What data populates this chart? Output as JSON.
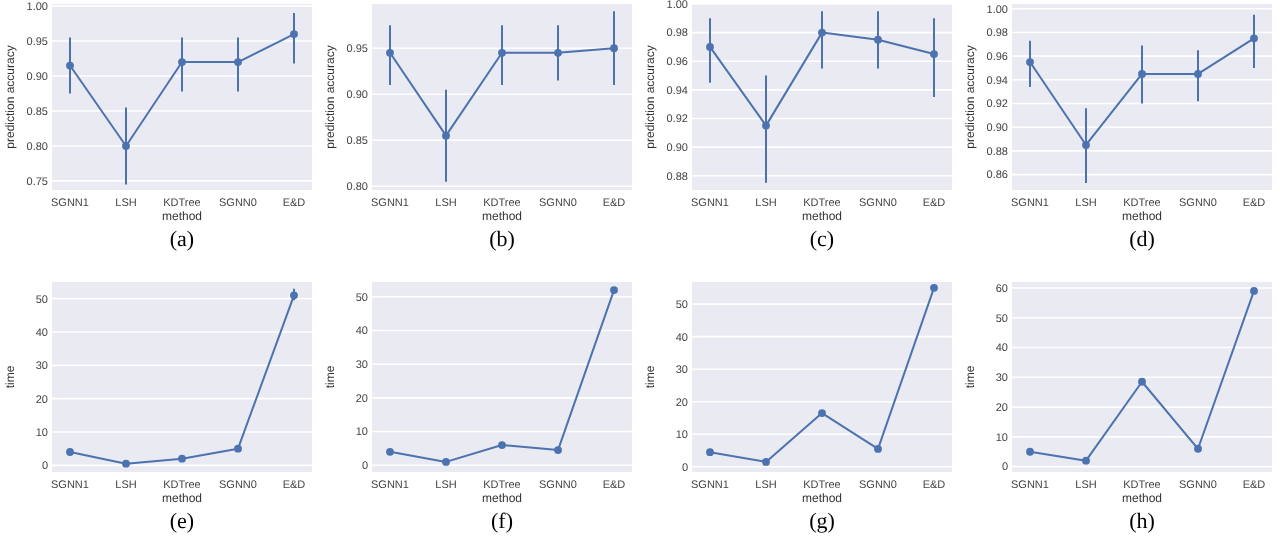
{
  "chart_data": [
    {
      "type": "line",
      "xlabel": "method",
      "ylabel": "prediction accuracy",
      "annotations": [
        "(a)"
      ],
      "categories": [
        "SGNN1",
        "LSH",
        "KDTree",
        "SGNN0",
        "E&D"
      ],
      "series": [
        {
          "color": "#4c72b0",
          "values": [
            0.915,
            0.8,
            0.92,
            0.92,
            0.96
          ],
          "errors": [
            [
              0.875,
              0.955
            ],
            [
              0.745,
              0.855
            ],
            [
              0.878,
              0.955
            ],
            [
              0.878,
              0.955
            ],
            [
              0.918,
              0.99
            ]
          ]
        }
      ],
      "ylim": [
        0.737,
        1.003
      ],
      "yticks": [
        {
          "value": 0.75,
          "label": "0.75"
        },
        {
          "value": 0.8,
          "label": "0.80"
        },
        {
          "value": 0.85,
          "label": "0.85"
        },
        {
          "value": 0.9,
          "label": "0.90"
        },
        {
          "value": 0.95,
          "label": "0.95"
        },
        {
          "value": 1,
          "label": "1.00"
        }
      ],
      "grid": "y",
      "marker": "circle"
    },
    {
      "type": "line",
      "xlabel": "method",
      "ylabel": "prediction accuracy",
      "annotations": [
        "(b)"
      ],
      "categories": [
        "SGNN1",
        "LSH",
        "KDTree",
        "SGNN0",
        "E&D"
      ],
      "series": [
        {
          "color": "#4c72b0",
          "values": [
            0.945,
            0.855,
            0.945,
            0.945,
            0.95
          ],
          "errors": [
            [
              0.91,
              0.975
            ],
            [
              0.805,
              0.905
            ],
            [
              0.91,
              0.975
            ],
            [
              0.915,
              0.975
            ],
            [
              0.91,
              0.99
            ]
          ]
        }
      ],
      "ylim": [
        0.796,
        0.998
      ],
      "yticks": [
        {
          "value": 0.8,
          "label": "0.80"
        },
        {
          "value": 0.85,
          "label": "0.85"
        },
        {
          "value": 0.9,
          "label": "0.90"
        },
        {
          "value": 0.95,
          "label": "0.95"
        }
      ],
      "grid": "y",
      "marker": "circle"
    },
    {
      "type": "line",
      "xlabel": "method",
      "ylabel": "prediction accuracy",
      "annotations": [
        "(c)"
      ],
      "categories": [
        "SGNN1",
        "LSH",
        "KDTree",
        "SGNN0",
        "E&D"
      ],
      "series": [
        {
          "color": "#4c72b0",
          "values": [
            0.97,
            0.915,
            0.98,
            0.975,
            0.965
          ],
          "errors": [
            [
              0.945,
              0.99
            ],
            [
              0.875,
              0.95
            ],
            [
              0.955,
              0.995
            ],
            [
              0.955,
              0.995
            ],
            [
              0.935,
              0.99
            ]
          ]
        }
      ],
      "ylim": [
        0.87,
        1.0
      ],
      "yticks": [
        {
          "value": 0.88,
          "label": "0.88"
        },
        {
          "value": 0.9,
          "label": "0.90"
        },
        {
          "value": 0.92,
          "label": "0.92"
        },
        {
          "value": 0.94,
          "label": "0.94"
        },
        {
          "value": 0.96,
          "label": "0.96"
        },
        {
          "value": 0.98,
          "label": "0.98"
        },
        {
          "value": 1,
          "label": "1.00"
        }
      ],
      "grid": "y",
      "marker": "circle"
    },
    {
      "type": "line",
      "xlabel": "method",
      "ylabel": "prediction accuracy",
      "annotations": [
        "(d)"
      ],
      "categories": [
        "SGNN1",
        "LSH",
        "KDTree",
        "SGNN0",
        "E&D"
      ],
      "series": [
        {
          "color": "#4c72b0",
          "values": [
            0.955,
            0.885,
            0.945,
            0.945,
            0.975
          ],
          "errors": [
            [
              0.934,
              0.973
            ],
            [
              0.853,
              0.916
            ],
            [
              0.92,
              0.969
            ],
            [
              0.922,
              0.965
            ],
            [
              0.95,
              0.995
            ]
          ]
        }
      ],
      "ylim": [
        0.847,
        1.004
      ],
      "yticks": [
        {
          "value": 0.86,
          "label": "0.86"
        },
        {
          "value": 0.88,
          "label": "0.88"
        },
        {
          "value": 0.9,
          "label": "0.90"
        },
        {
          "value": 0.92,
          "label": "0.92"
        },
        {
          "value": 0.94,
          "label": "0.94"
        },
        {
          "value": 0.96,
          "label": "0.96"
        },
        {
          "value": 0.98,
          "label": "0.98"
        },
        {
          "value": 1,
          "label": "1.00"
        }
      ],
      "grid": "y",
      "marker": "circle"
    },
    {
      "type": "line",
      "xlabel": "method",
      "ylabel": "time",
      "annotations": [
        "(e)"
      ],
      "categories": [
        "SGNN1",
        "LSH",
        "KDTree",
        "SGNN0",
        "E&D"
      ],
      "series": [
        {
          "color": "#4c72b0",
          "values": [
            4,
            0.5,
            2,
            5,
            51
          ],
          "errors": [
            null,
            null,
            null,
            null,
            [
              49.5,
              53
            ]
          ]
        }
      ],
      "ylim": [
        -2,
        55
      ],
      "yticks": [
        0,
        10,
        20,
        30,
        40,
        50
      ],
      "grid": "y",
      "marker": "circle"
    },
    {
      "type": "line",
      "xlabel": "method",
      "ylabel": "time",
      "annotations": [
        "(f)"
      ],
      "categories": [
        "SGNN1",
        "LSH",
        "KDTree",
        "SGNN0",
        "E&D"
      ],
      "series": [
        {
          "color": "#4c72b0",
          "values": [
            4,
            1,
            6,
            4.5,
            52
          ]
        }
      ],
      "ylim": [
        -2,
        54.4
      ],
      "yticks": [
        0,
        10,
        20,
        30,
        40,
        50
      ],
      "grid": "y",
      "marker": "circle"
    },
    {
      "type": "line",
      "xlabel": "method",
      "ylabel": "time",
      "annotations": [
        "(g)"
      ],
      "categories": [
        "SGNN1",
        "LSH",
        "KDTree",
        "SGNN0",
        "E&D"
      ],
      "series": [
        {
          "color": "#4c72b0",
          "values": [
            4.5,
            1.5,
            16.5,
            5.5,
            55
          ]
        }
      ],
      "ylim": [
        -1.6,
        56.8
      ],
      "yticks": [
        0,
        10,
        20,
        30,
        40,
        50
      ],
      "grid": "y",
      "marker": "circle"
    },
    {
      "type": "line",
      "xlabel": "method",
      "ylabel": "time",
      "annotations": [
        "(h)"
      ],
      "categories": [
        "SGNN1",
        "LSH",
        "KDTree",
        "SGNN0",
        "E&D"
      ],
      "series": [
        {
          "color": "#4c72b0",
          "values": [
            5,
            2,
            28.5,
            6,
            59
          ]
        }
      ],
      "ylim": [
        -1.8,
        62
      ],
      "yticks": [
        0,
        10,
        20,
        30,
        40,
        50,
        60
      ],
      "grid": "y",
      "marker": "circle"
    }
  ]
}
